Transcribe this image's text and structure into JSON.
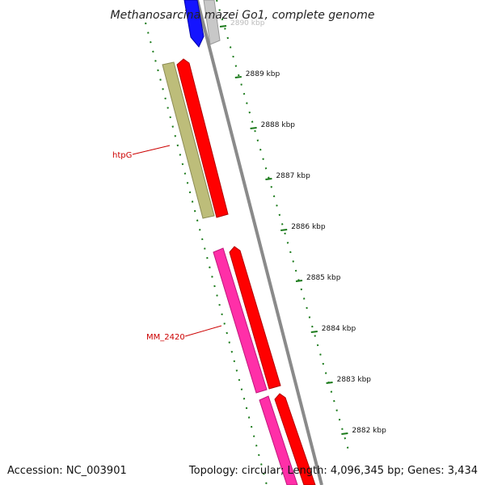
{
  "map": {
    "title": "Methanosarcina mazei Go1, complete genome",
    "accession": "Accession: NC_003901",
    "summary": "Topology: circular; Length: 4,096,345 bp; Genes: 3,434"
  },
  "ticks": [
    {
      "label": "2890 kbp",
      "faded": true
    },
    {
      "label": "2889 kbp",
      "faded": false
    },
    {
      "label": "2888 kbp",
      "faded": false
    },
    {
      "label": "2887 kbp",
      "faded": false
    },
    {
      "label": "2886 kbp",
      "faded": false
    },
    {
      "label": "2885 kbp",
      "faded": false
    },
    {
      "label": "2884 kbp",
      "faded": false
    },
    {
      "label": "2883 kbp",
      "faded": false
    },
    {
      "label": "2882 kbp",
      "faded": false
    }
  ],
  "gene_labels": [
    {
      "label": "htpG"
    },
    {
      "label": "MM_2420"
    }
  ],
  "colors": {
    "backbone": "#8a8a8a",
    "tick": "#1a7a1a",
    "cds_forward": "#ff0000",
    "gene_htpg": "#bdbd7a",
    "gene_pink": "#ff2fa8",
    "gene_blue": "#1414ff",
    "gene_grey": "#c8c8c8",
    "label": "#cc0000"
  }
}
